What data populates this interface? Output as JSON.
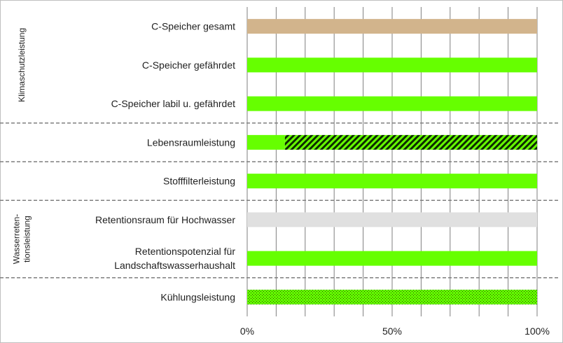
{
  "chart_data": {
    "type": "bar",
    "orientation": "horizontal",
    "stacked": true,
    "xlim": [
      0,
      100
    ],
    "x_ticks": [
      "0%",
      "50%",
      "100%"
    ],
    "grid": true,
    "groups": [
      {
        "label": "Klimaschutzleistung",
        "categories": [
          "C-Speicher gesamt",
          "C-Speicher gefährdet",
          "C-Speicher labil u. gefährdet"
        ]
      },
      {
        "label": "",
        "categories": [
          "Lebensraumleistung"
        ]
      },
      {
        "label": "",
        "categories": [
          "Stofffilterleistung"
        ]
      },
      {
        "label": "Wasserreten-\ntionsleistung",
        "categories": [
          "Retentionsraum für Hochwasser",
          "Retentionspotenzial für\nLandschaftswasserhaushalt"
        ]
      },
      {
        "label": "",
        "categories": [
          "Kühlungsleistung"
        ]
      }
    ],
    "categories": [
      "C-Speicher gesamt",
      "C-Speicher gefährdet",
      "C-Speicher labil u. gefährdet",
      "Lebensraumleistung",
      "Stofffilterleistung",
      "Retentionsraum für Hochwasser",
      "Retentionspotenzial für\nLandschaftswasserhaushalt",
      "Kühlungsleistung"
    ],
    "bars": [
      [
        {
          "value": 100,
          "color": "#d2b48c",
          "pattern": "solid"
        }
      ],
      [
        {
          "value": 100,
          "color": "#66ff00",
          "pattern": "solid"
        }
      ],
      [
        {
          "value": 100,
          "color": "#66ff00",
          "pattern": "solid"
        }
      ],
      [
        {
          "value": 13,
          "color": "#66ff00",
          "pattern": "solid"
        },
        {
          "value": 87,
          "color": "#66ff00",
          "pattern": "hatch"
        }
      ],
      [
        {
          "value": 100,
          "color": "#66ff00",
          "pattern": "solid"
        }
      ],
      [
        {
          "value": 100,
          "color": "#e0e0e0",
          "pattern": "solid"
        }
      ],
      [
        {
          "value": 100,
          "color": "#66ff00",
          "pattern": "solid"
        }
      ],
      [
        {
          "value": 100,
          "color": "#66ff00",
          "pattern": "dots"
        }
      ]
    ],
    "colors": {
      "tan": "#d2b48c",
      "green": "#66ff00",
      "gray": "#e0e0e0",
      "gridline": "#7f7f7f",
      "separator": "#7f7f7f"
    }
  }
}
